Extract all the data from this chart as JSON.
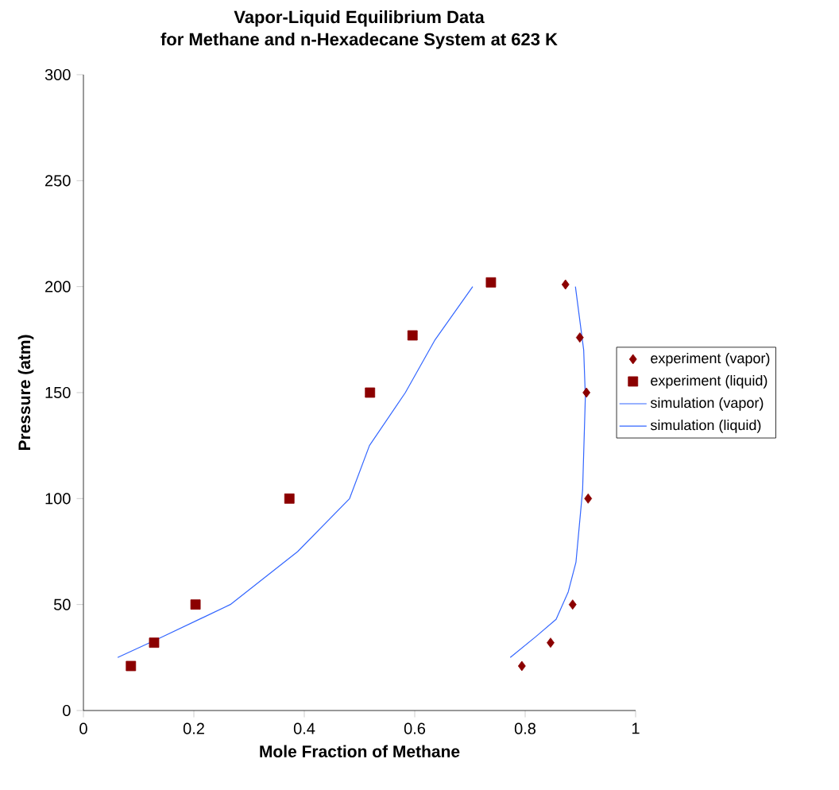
{
  "chart_data": {
    "type": "scatter",
    "title": "Vapor-Liquid Equilibrium Data",
    "subtitle": "for Methane and n-Hexadecane System at 623 K",
    "xlabel": "Mole Fraction of Methane",
    "ylabel": "Pressure (atm)",
    "xlim": [
      0,
      1
    ],
    "ylim": [
      0,
      300
    ],
    "xticks": [
      0,
      0.2,
      0.4,
      0.6,
      0.8,
      1
    ],
    "yticks": [
      0,
      50,
      100,
      150,
      200,
      250,
      300
    ],
    "grid": false,
    "legend": "right",
    "series": [
      {
        "name": "experiment (vapor)",
        "marker": "diamond",
        "color": "#8b0000",
        "x": [
          0.873,
          0.899,
          0.911,
          0.914,
          0.886,
          0.846,
          0.794
        ],
        "values": [
          201,
          176,
          150,
          100,
          50,
          32,
          21
        ]
      },
      {
        "name": "experiment (liquid)",
        "marker": "square",
        "color": "#8b0000",
        "x": [
          0.738,
          0.596,
          0.519,
          0.373,
          0.203,
          0.128,
          0.086
        ],
        "values": [
          202,
          177,
          150,
          100,
          50,
          32,
          21
        ]
      },
      {
        "name": "simulation (vapor)",
        "type": "line",
        "marker": "none",
        "line_style": "solid",
        "color": "#3366ff",
        "x": [
          0.773,
          0.82,
          0.856,
          0.878,
          0.892,
          0.904,
          0.909,
          0.906,
          0.891
        ],
        "values": [
          25,
          35,
          43,
          56,
          70,
          104,
          148,
          170,
          200
        ]
      },
      {
        "name": "simulation (liquid)",
        "type": "line",
        "marker": "none",
        "line_style": "solid",
        "color": "#3366ff",
        "x": [
          0.062,
          0.137,
          0.266,
          0.388,
          0.482,
          0.518,
          0.583,
          0.637,
          0.705
        ],
        "values": [
          25,
          34,
          50,
          75,
          100,
          125,
          150,
          175,
          200
        ]
      }
    ]
  }
}
